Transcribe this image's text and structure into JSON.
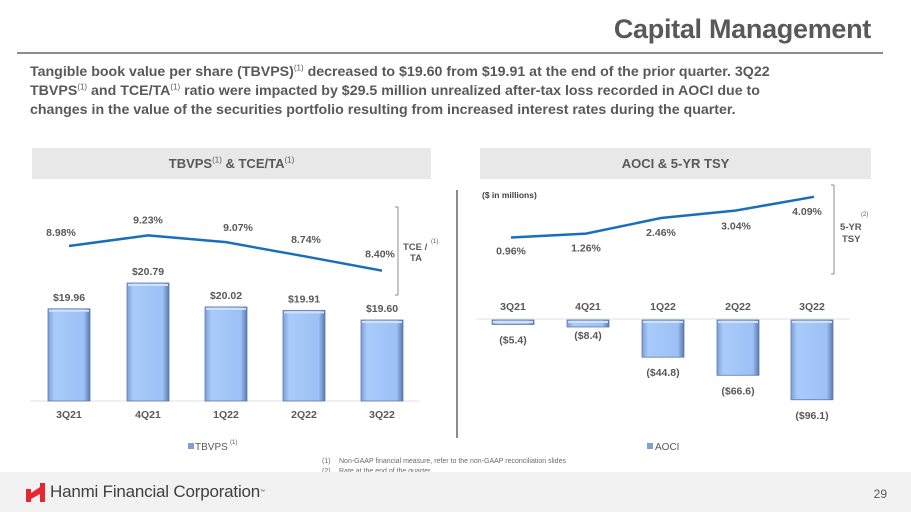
{
  "header": {
    "title": "Capital Management"
  },
  "summary": {
    "line1_a": "Tangible book value per share (TBVPS)",
    "line1_b": " decreased to $19.60 from $19.91 at the end of the prior quarter. 3Q22",
    "line2_a": "TBVPS",
    "line2_b": " and TCE/TA",
    "line2_c": " ratio were impacted by $29.5 million unrealized after-tax loss recorded in AOCI due to",
    "line3": "changes in the value of the securities portfolio resulting from increased interest rates during the quarter.",
    "footnote_mark": "(1)"
  },
  "chart_data": [
    {
      "type": "bar",
      "title": "TBVPS(1) & TCE/TA(1)",
      "title_main": "TBVPS",
      "title_mid": " & TCE/TA",
      "title_sup": "(1)",
      "categories": [
        "3Q21",
        "4Q21",
        "1Q22",
        "2Q22",
        "3Q22"
      ],
      "series": [
        {
          "name": "TBVPS",
          "legend_sup": "(1)",
          "kind": "bar",
          "values": [
            19.96,
            20.79,
            20.02,
            19.91,
            19.6
          ],
          "labels": [
            "$19.96",
            "$20.79",
            "$20.02",
            "$19.91",
            "$19.60"
          ],
          "color": "#9dc3f7"
        },
        {
          "name": "TCE / TA",
          "legend_sup": "(1)",
          "kind": "line",
          "values": [
            8.98,
            9.23,
            9.07,
            8.74,
            8.4
          ],
          "labels": [
            "8.98%",
            "9.23%",
            "9.07%",
            "8.74%",
            "8.40%"
          ],
          "color": "#1a6fba"
        }
      ],
      "bracket_label_line1": "TCE /",
      "bracket_label_line2": "TA",
      "bracket_sup": "(1)",
      "bar_ylim": [
        17.0,
        21.0
      ],
      "line_ylim": [
        7.0,
        10.5
      ],
      "legend": "bottom-center",
      "grid": false
    },
    {
      "type": "bar",
      "title": "AOCI & 5-YR TSY",
      "unit_note": "($ in millions)",
      "categories": [
        "3Q21",
        "4Q21",
        "1Q22",
        "2Q22",
        "3Q22"
      ],
      "series": [
        {
          "name": "AOCI",
          "kind": "bar",
          "values": [
            -5.4,
            -8.4,
            -44.8,
            -66.6,
            -96.1
          ],
          "labels": [
            "($5.4)",
            "($8.4)",
            "($44.8)",
            "($66.6)",
            "($96.1)"
          ],
          "color": "#9dc3f7"
        },
        {
          "name": "5-YR TSY",
          "legend_sup": "(2)",
          "kind": "line",
          "values": [
            0.96,
            1.26,
            2.46,
            3.04,
            4.09
          ],
          "labels": [
            "0.96%",
            "1.26%",
            "2.46%",
            "3.04%",
            "4.09%"
          ],
          "color": "#1a6fba"
        }
      ],
      "bracket_label_line1": "5-YR",
      "bracket_label_line2": "TSY",
      "bracket_sup": "(2)",
      "bar_ylim": [
        -100,
        0
      ],
      "line_ylim": [
        -2.0,
        4.5
      ],
      "legend": "bottom-center",
      "grid": false
    }
  ],
  "footnotes": [
    {
      "num": "(1)",
      "text": "Non-GAAP financial measure, refer to the non-GAAP reconciliation slides"
    },
    {
      "num": "(2)",
      "text": "Rate at the end of the quarter"
    }
  ],
  "footer": {
    "company": "Hanmi Financial Corporation",
    "page_number": "29",
    "brand_color": "#e8262f"
  }
}
